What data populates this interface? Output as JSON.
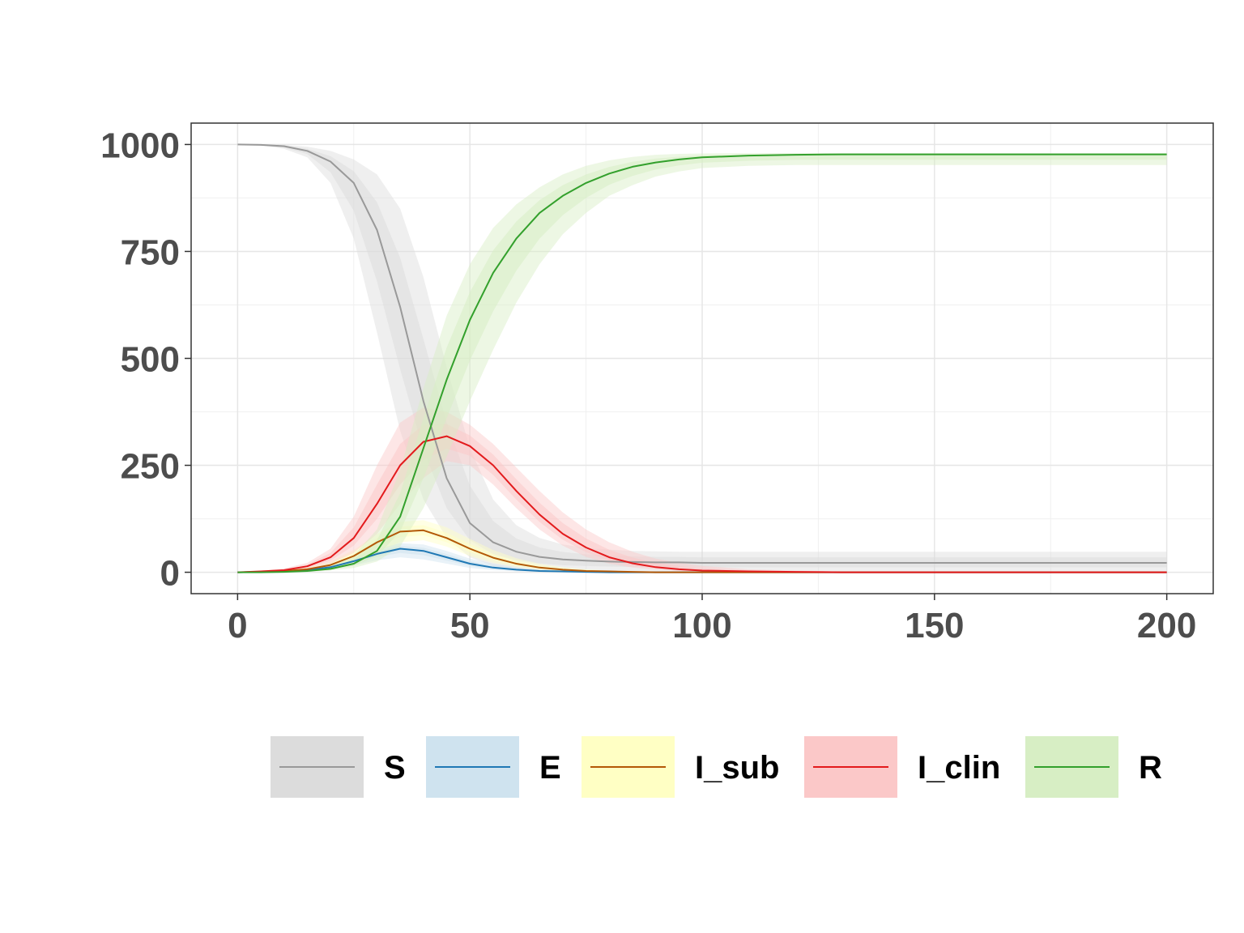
{
  "chart_data": {
    "type": "line",
    "title": "",
    "xlabel": "",
    "ylabel": "",
    "xlim": [
      -10,
      210
    ],
    "ylim": [
      -50,
      1050
    ],
    "x_ticks": [
      0,
      50,
      100,
      150,
      200
    ],
    "x_tick_labels": [
      "0",
      "50",
      "100",
      "150",
      "200"
    ],
    "y_ticks": [
      0,
      250,
      500,
      750,
      1000
    ],
    "y_tick_labels": [
      "0",
      "250",
      "500",
      "750",
      "1000"
    ],
    "grid": true,
    "legend_position": "bottom",
    "x": [
      0,
      5,
      10,
      15,
      20,
      25,
      30,
      35,
      40,
      45,
      50,
      55,
      60,
      65,
      70,
      75,
      80,
      85,
      90,
      95,
      100,
      110,
      120,
      130,
      140,
      150,
      160,
      170,
      180,
      190,
      200
    ],
    "series": [
      {
        "name": "S",
        "color": "#999999",
        "fill": "#dcdcdc",
        "values": [
          1000,
          999,
          996,
          985,
          960,
          910,
          800,
          620,
          400,
          220,
          115,
          70,
          48,
          36,
          30,
          27,
          25,
          24,
          23,
          23,
          22,
          22,
          22,
          22,
          22,
          22,
          22,
          22,
          22,
          22,
          22
        ],
        "band_low": [
          1000,
          998,
          990,
          970,
          910,
          780,
          560,
          330,
          170,
          80,
          35,
          15,
          8,
          5,
          3,
          2,
          2,
          1,
          1,
          1,
          1,
          1,
          1,
          1,
          1,
          1,
          1,
          1,
          1,
          1,
          1
        ],
        "band_high": [
          1000,
          1000,
          999,
          995,
          985,
          965,
          930,
          850,
          690,
          480,
          290,
          170,
          110,
          80,
          65,
          57,
          53,
          50,
          49,
          48,
          48,
          48,
          48,
          48,
          48,
          48,
          48,
          48,
          48,
          48,
          48
        ]
      },
      {
        "name": "E",
        "color": "#1f78b4",
        "fill": "#cfe3ef",
        "values": [
          0,
          1,
          2,
          5,
          12,
          26,
          43,
          55,
          50,
          35,
          20,
          11,
          6,
          3,
          2,
          1,
          0,
          0,
          0,
          0,
          0,
          0,
          0,
          0,
          0,
          0,
          0,
          0,
          0,
          0,
          0
        ],
        "band_low": [
          0,
          0,
          1,
          3,
          7,
          16,
          28,
          35,
          30,
          20,
          10,
          5,
          2,
          1,
          0,
          0,
          0,
          0,
          0,
          0,
          0,
          0,
          0,
          0,
          0,
          0,
          0,
          0,
          0,
          0,
          0
        ],
        "band_high": [
          0,
          2,
          4,
          9,
          18,
          35,
          55,
          68,
          65,
          50,
          32,
          20,
          12,
          7,
          4,
          2,
          1,
          1,
          0,
          0,
          0,
          0,
          0,
          0,
          0,
          0,
          0,
          0,
          0,
          0,
          0
        ]
      },
      {
        "name": "I_sub",
        "color": "#b35806",
        "fill": "#ffffc4",
        "values": [
          0,
          1,
          3,
          7,
          17,
          38,
          70,
          95,
          98,
          80,
          55,
          34,
          20,
          11,
          6,
          3,
          2,
          1,
          0,
          0,
          0,
          0,
          0,
          0,
          0,
          0,
          0,
          0,
          0,
          0,
          0
        ],
        "band_low": [
          0,
          0,
          1,
          4,
          10,
          24,
          48,
          70,
          75,
          60,
          38,
          22,
          12,
          6,
          3,
          1,
          0,
          0,
          0,
          0,
          0,
          0,
          0,
          0,
          0,
          0,
          0,
          0,
          0,
          0,
          0
        ],
        "band_high": [
          0,
          2,
          5,
          12,
          26,
          52,
          90,
          118,
          122,
          105,
          78,
          52,
          33,
          20,
          12,
          7,
          4,
          2,
          1,
          0,
          0,
          0,
          0,
          0,
          0,
          0,
          0,
          0,
          0,
          0,
          0
        ]
      },
      {
        "name": "I_clin",
        "color": "#e31a1c",
        "fill": "#fbc8c8",
        "values": [
          0,
          2,
          5,
          14,
          35,
          80,
          160,
          250,
          305,
          318,
          295,
          250,
          190,
          135,
          90,
          58,
          35,
          21,
          12,
          7,
          4,
          2,
          1,
          0,
          0,
          0,
          0,
          0,
          0,
          0,
          0
        ],
        "band_low": [
          0,
          1,
          3,
          8,
          20,
          45,
          90,
          160,
          220,
          260,
          250,
          205,
          150,
          100,
          62,
          36,
          20,
          11,
          6,
          3,
          2,
          1,
          0,
          0,
          0,
          0,
          0,
          0,
          0,
          0,
          0
        ],
        "band_high": [
          0,
          4,
          9,
          22,
          55,
          130,
          250,
          350,
          385,
          375,
          345,
          300,
          245,
          190,
          140,
          100,
          70,
          48,
          32,
          22,
          15,
          7,
          4,
          2,
          1,
          0,
          0,
          0,
          0,
          0,
          0
        ]
      },
      {
        "name": "R",
        "color": "#33a02c",
        "fill": "#d7eec4",
        "values": [
          0,
          0,
          1,
          3,
          8,
          20,
          50,
          130,
          290,
          450,
          590,
          700,
          780,
          840,
          880,
          910,
          932,
          948,
          958,
          965,
          970,
          974,
          976,
          977,
          977,
          977,
          977,
          977,
          977,
          977,
          977
        ],
        "band_low": [
          0,
          0,
          0,
          1,
          4,
          10,
          25,
          60,
          150,
          270,
          400,
          520,
          630,
          720,
          790,
          840,
          880,
          905,
          925,
          937,
          945,
          950,
          952,
          952,
          952,
          952,
          952,
          952,
          952,
          952,
          952
        ],
        "band_high": [
          0,
          1,
          3,
          8,
          18,
          40,
          100,
          240,
          430,
          600,
          720,
          805,
          860,
          900,
          930,
          950,
          963,
          971,
          976,
          978,
          979,
          980,
          980,
          980,
          980,
          980,
          980,
          980,
          980,
          980,
          980
        ]
      }
    ]
  }
}
